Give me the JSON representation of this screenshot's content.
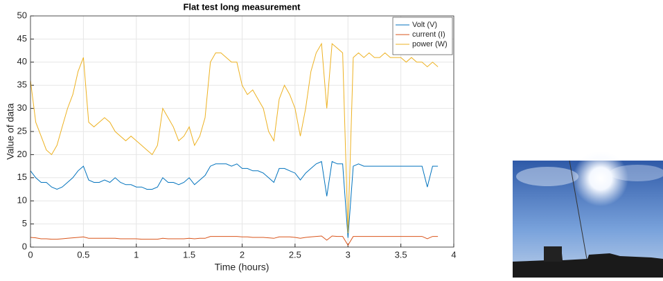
{
  "chart_data": {
    "type": "line",
    "title": "Flat test long measurement",
    "xlabel": "Time (hours)",
    "ylabel": "Value of data",
    "x": [
      0,
      0.05,
      0.1,
      0.15,
      0.2,
      0.25,
      0.3,
      0.35,
      0.4,
      0.45,
      0.5,
      0.55,
      0.6,
      0.65,
      0.7,
      0.75,
      0.8,
      0.85,
      0.9,
      0.95,
      1,
      1.05,
      1.1,
      1.15,
      1.2,
      1.25,
      1.3,
      1.35,
      1.4,
      1.45,
      1.5,
      1.55,
      1.6,
      1.65,
      1.7,
      1.75,
      1.8,
      1.85,
      1.9,
      1.95,
      2,
      2.05,
      2.1,
      2.15,
      2.2,
      2.25,
      2.3,
      2.35,
      2.4,
      2.45,
      2.5,
      2.55,
      2.6,
      2.65,
      2.7,
      2.75,
      2.8,
      2.85,
      2.9,
      2.95,
      3,
      3.05,
      3.1,
      3.15,
      3.2,
      3.25,
      3.3,
      3.35,
      3.4,
      3.45,
      3.5,
      3.55,
      3.6,
      3.65,
      3.7,
      3.75,
      3.8,
      3.85
    ],
    "series": [
      {
        "name": "Volt (V)",
        "color": "#0072BD",
        "values": [
          16.5,
          15,
          14,
          14,
          13,
          12.5,
          13,
          14,
          15,
          16.5,
          17.5,
          14.5,
          14,
          14,
          14.5,
          14,
          15,
          14,
          13.5,
          13.5,
          13,
          13,
          12.5,
          12.5,
          13,
          15,
          14,
          14,
          13.5,
          14,
          15,
          13.5,
          14.5,
          15.5,
          17.5,
          18,
          18,
          18,
          17.5,
          18,
          17,
          17,
          16.5,
          16.5,
          16,
          15,
          14,
          17,
          17,
          16.5,
          16,
          14.5,
          16,
          17,
          18,
          18.5,
          11,
          18.5,
          18,
          18,
          2,
          17.5,
          18,
          17.5,
          17.5,
          17.5,
          17.5,
          17.5,
          17.5,
          17.5,
          17.5,
          17.5,
          17.5,
          17.5,
          17.5,
          13,
          17.5,
          17.5
        ]
      },
      {
        "name": "current (I)",
        "color": "#D95319",
        "values": [
          2.1,
          2,
          1.8,
          1.8,
          1.7,
          1.7,
          1.8,
          1.9,
          2,
          2.1,
          2.2,
          1.9,
          1.9,
          1.9,
          1.9,
          1.9,
          1.9,
          1.8,
          1.8,
          1.8,
          1.8,
          1.7,
          1.7,
          1.7,
          1.7,
          1.9,
          1.8,
          1.8,
          1.8,
          1.8,
          1.9,
          1.8,
          1.9,
          1.9,
          2.3,
          2.3,
          2.3,
          2.3,
          2.3,
          2.3,
          2.2,
          2.2,
          2.1,
          2.1,
          2.1,
          2,
          1.9,
          2.2,
          2.2,
          2.2,
          2.1,
          1.9,
          2.1,
          2.2,
          2.3,
          2.4,
          1.5,
          2.4,
          2.3,
          2.3,
          0.4,
          2.3,
          2.3,
          2.3,
          2.3,
          2.3,
          2.3,
          2.3,
          2.3,
          2.3,
          2.3,
          2.3,
          2.3,
          2.3,
          2.3,
          1.8,
          2.3,
          2.3
        ]
      },
      {
        "name": "power (W)",
        "color": "#EDB120",
        "values": [
          36,
          27,
          24,
          21,
          20,
          22,
          26,
          30,
          33,
          38,
          41,
          27,
          26,
          27,
          28,
          27,
          25,
          24,
          23,
          24,
          23,
          22,
          21,
          20,
          22,
          30,
          28,
          26,
          23,
          24,
          26,
          22,
          24,
          28,
          40,
          42,
          42,
          41,
          40,
          40,
          35,
          33,
          34,
          32,
          30,
          25,
          23,
          32,
          35,
          33,
          30,
          24,
          30,
          38,
          42,
          44,
          30,
          44,
          43,
          42,
          3,
          41,
          42,
          41,
          42,
          41,
          41,
          42,
          41,
          41,
          41,
          40,
          41,
          40,
          40,
          39,
          40,
          39
        ]
      }
    ],
    "xlim": [
      0,
      4
    ],
    "xticks": [
      0,
      0.5,
      1,
      1.5,
      2,
      2.5,
      3,
      3.5,
      4
    ],
    "ylim": [
      0,
      50
    ],
    "yticks": [
      0,
      5,
      10,
      15,
      20,
      25,
      30,
      35,
      40,
      45,
      50
    ],
    "grid": true,
    "legend": "upper right"
  }
}
